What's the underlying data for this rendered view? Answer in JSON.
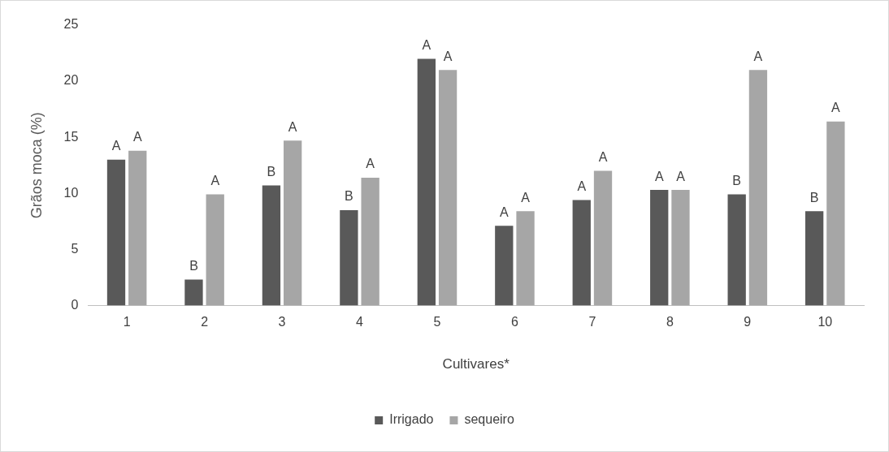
{
  "chart_data": {
    "type": "bar",
    "xlabel": "Cultivares*",
    "ylabel": "Grãos moca (%)",
    "categories": [
      "1",
      "2",
      "3",
      "4",
      "5",
      "6",
      "7",
      "8",
      "9",
      "10"
    ],
    "series": [
      {
        "name": "Irrigado",
        "color": "#595959",
        "values": [
          13.0,
          2.3,
          10.7,
          8.5,
          22.0,
          7.1,
          9.4,
          10.3,
          9.9,
          8.4
        ],
        "value_labels": [
          "A",
          "B",
          "B",
          "B",
          "A",
          "A",
          "A",
          "A",
          "B",
          "B"
        ]
      },
      {
        "name": "sequeiro",
        "color": "#a6a6a6",
        "values": [
          13.8,
          9.9,
          14.7,
          11.4,
          21.0,
          8.4,
          12.0,
          10.3,
          21.0,
          16.4
        ],
        "value_labels": [
          "A",
          "A",
          "A",
          "A",
          "A",
          "A",
          "A",
          "A",
          "A",
          "A"
        ]
      }
    ],
    "ylim": [
      0,
      25
    ],
    "yticks": [
      0,
      5,
      10,
      15,
      20,
      25
    ],
    "grid": false,
    "legend": "bottom"
  }
}
